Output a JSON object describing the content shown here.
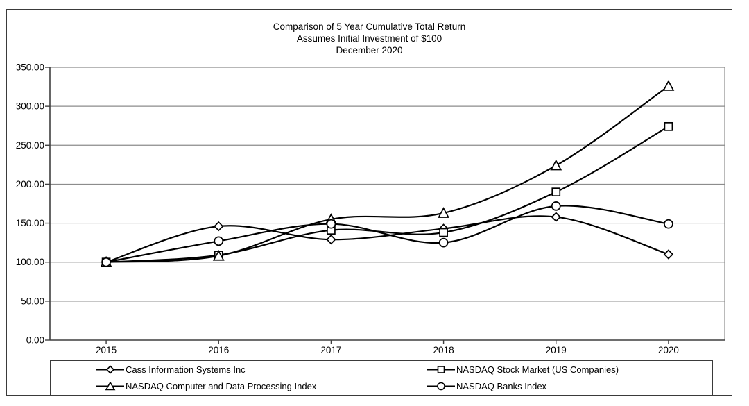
{
  "title": {
    "line1": "Comparison of 5 Year Cumulative Total Return",
    "line2": "Assumes Initial Investment of $100",
    "line3": "December 2020"
  },
  "chart_data": {
    "type": "line",
    "title": "Comparison of 5 Year Cumulative Total Return",
    "subtitle": "Assumes Initial Investment of $100",
    "date_label": "December 2020",
    "categories": [
      "2015",
      "2016",
      "2017",
      "2018",
      "2019",
      "2020"
    ],
    "series": [
      {
        "name": "Cass Information Systems Inc",
        "marker": "diamond",
        "values": [
          100,
          146,
          129,
          143,
          158,
          110
        ]
      },
      {
        "name": "NASDAQ Stock Market (US Companies)",
        "marker": "square",
        "values": [
          100,
          109,
          141,
          138,
          190,
          274
        ]
      },
      {
        "name": "NASDAQ Computer and Data Processing Index",
        "marker": "triangle",
        "values": [
          100,
          108,
          155,
          163,
          224,
          326
        ]
      },
      {
        "name": "NASDAQ Banks Index",
        "marker": "circle",
        "values": [
          100,
          127,
          149,
          125,
          172,
          149
        ]
      }
    ],
    "y_ticks": [
      "0.00",
      "50.00",
      "100.00",
      "150.00",
      "200.00",
      "250.00",
      "300.00",
      "350.00"
    ],
    "ylim": [
      0,
      350
    ],
    "grid": true,
    "smoothed_lines": true,
    "legend_position": "bottom",
    "line_color": "#000000",
    "marker_fill": "#ffffff",
    "grid_color": "#8c8c8c",
    "axis_color": "#3f3f3f"
  }
}
